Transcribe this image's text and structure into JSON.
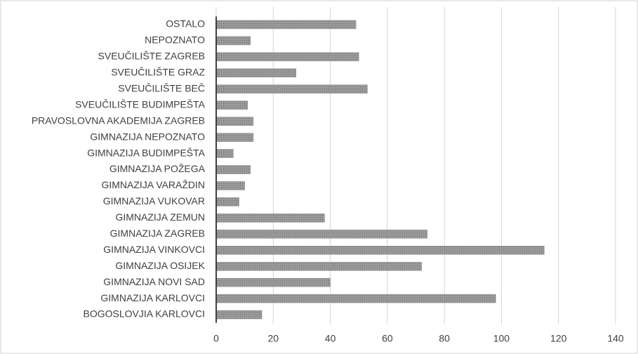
{
  "chart_data": {
    "type": "bar",
    "orientation": "horizontal",
    "categories": [
      "OSTALO",
      "NEPOZNATO",
      "SVEUČILIŠTE ZAGREB",
      "SVEUČILIŠTE GRAZ",
      "SVEUČILIŠTE BEČ",
      "SVEUČILIŠTE BUDIMPEŠTA",
      "PRAVOSLOVNA AKADEMIJA ZAGREB",
      "GIMNAZIJA NEPOZNATO",
      "GIMNAZIJA BUDIMPEŠTA",
      "GIMNAZIJA POŽEGA",
      "GIMNAZIJA VARAŽDIN",
      "GIMNAZIJA VUKOVAR",
      "GIMNAZIJA ZEMUN",
      "GIMNAZIJA ZAGREB",
      "GIMNAZIJA VINKOVCI",
      "GIMNAZIJA OSIJEK",
      "GIMNAZIJA NOVI SAD",
      "GIMNAZIJA KARLOVCI",
      "BOGOSLOVJIA KARLOVCI"
    ],
    "values": [
      49,
      12,
      50,
      28,
      53,
      11,
      13,
      13,
      6,
      12,
      10,
      8,
      38,
      74,
      115,
      72,
      40,
      98,
      16
    ],
    "color": "#8a8a8a",
    "xlim": [
      0,
      140
    ],
    "xticks": [
      0,
      20,
      40,
      60,
      80,
      100,
      120,
      140
    ],
    "grid": true
  }
}
